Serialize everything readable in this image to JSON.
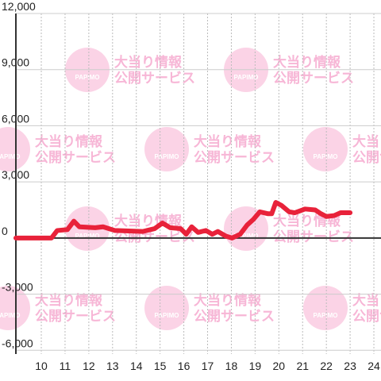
{
  "chart_data": {
    "type": "line",
    "watermark": {
      "logo": "PAPIMO",
      "title": "大当り情報",
      "subtitle": "公開サービス"
    },
    "x": [
      8.93,
      10.43,
      10.67,
      11.1,
      11.37,
      11.6,
      12.27,
      12.6,
      13.1,
      14.27,
      14.77,
      15.1,
      15.43,
      15.87,
      16.1,
      16.33,
      16.6,
      16.93,
      17.2,
      17.43,
      17.77,
      18.03,
      18.37,
      18.67,
      18.93,
      19.2,
      19.53,
      19.7,
      19.87,
      20.1,
      20.43,
      20.67,
      21.1,
      21.53,
      21.77,
      22.0,
      22.33,
      22.6,
      23.0
    ],
    "series": [
      {
        "color": "#e8223a",
        "values": [
          0,
          0,
          400,
          450,
          900,
          600,
          550,
          600,
          400,
          350,
          500,
          800,
          550,
          500,
          200,
          600,
          300,
          400,
          200,
          350,
          100,
          0,
          200,
          700,
          1000,
          1400,
          1300,
          1300,
          1900,
          1750,
          1400,
          1350,
          1550,
          1500,
          1300,
          1150,
          1200,
          1350,
          1350
        ]
      }
    ],
    "xlim": [
      8.93,
      24.3
    ],
    "xticks": [
      10,
      11,
      12,
      13,
      14,
      15,
      16,
      17,
      18,
      19,
      20,
      21,
      22,
      23,
      24
    ],
    "ylim": [
      -6200,
      12000
    ],
    "yticks": [
      {
        "value": 12000,
        "label": "12,000"
      },
      {
        "value": 9000,
        "label": "9,000"
      },
      {
        "value": 6000,
        "label": "6,000"
      },
      {
        "value": 3000,
        "label": "3,000"
      },
      0,
      {
        "value": -3000,
        "label": "-3,000"
      },
      {
        "value": -6000,
        "label": "-6,000"
      }
    ],
    "grid": true
  }
}
